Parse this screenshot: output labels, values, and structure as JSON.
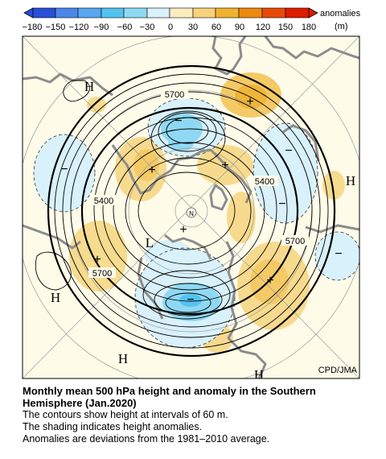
{
  "colorbar": {
    "ticks": [
      "−180",
      "−150",
      "−120",
      "−90",
      "−60",
      "−30",
      "0",
      "30",
      "60",
      "90",
      "120",
      "150",
      "180"
    ],
    "colors": [
      "#2a4fd8",
      "#4b86ea",
      "#58a6f0",
      "#55c3ef",
      "#8fd8f4",
      "#d8f1fb",
      "#ffffff",
      "#fbecc0",
      "#f6d27a",
      "#f0b22e",
      "#ec8a10",
      "#e74b05",
      "#dd1c00"
    ],
    "unit_label": "anomalies",
    "unit": "(m)"
  },
  "map": {
    "credit": "CPD/JMA",
    "contour_labels": [
      "5700",
      "5400",
      "5400",
      "5700",
      "5700"
    ],
    "highs": [
      "H",
      "H",
      "H",
      "H",
      "H"
    ],
    "lows": [
      "L"
    ],
    "positive_markers": [
      "+",
      "+",
      "+",
      "+",
      "+",
      "+"
    ],
    "negative_markers": [
      "−",
      "−",
      "−",
      "−",
      "−",
      "−"
    ],
    "pole_label": "N"
  },
  "caption": {
    "title": "Monthly mean 500 hPa height and anomaly in the Southern Hemisphere (Jan.2020)",
    "lines": [
      "The contours show height at intervals of 60 m.",
      "The shading indicates height anomalies.",
      "Anomalies are deviations from the 1981–2010 average."
    ]
  }
}
